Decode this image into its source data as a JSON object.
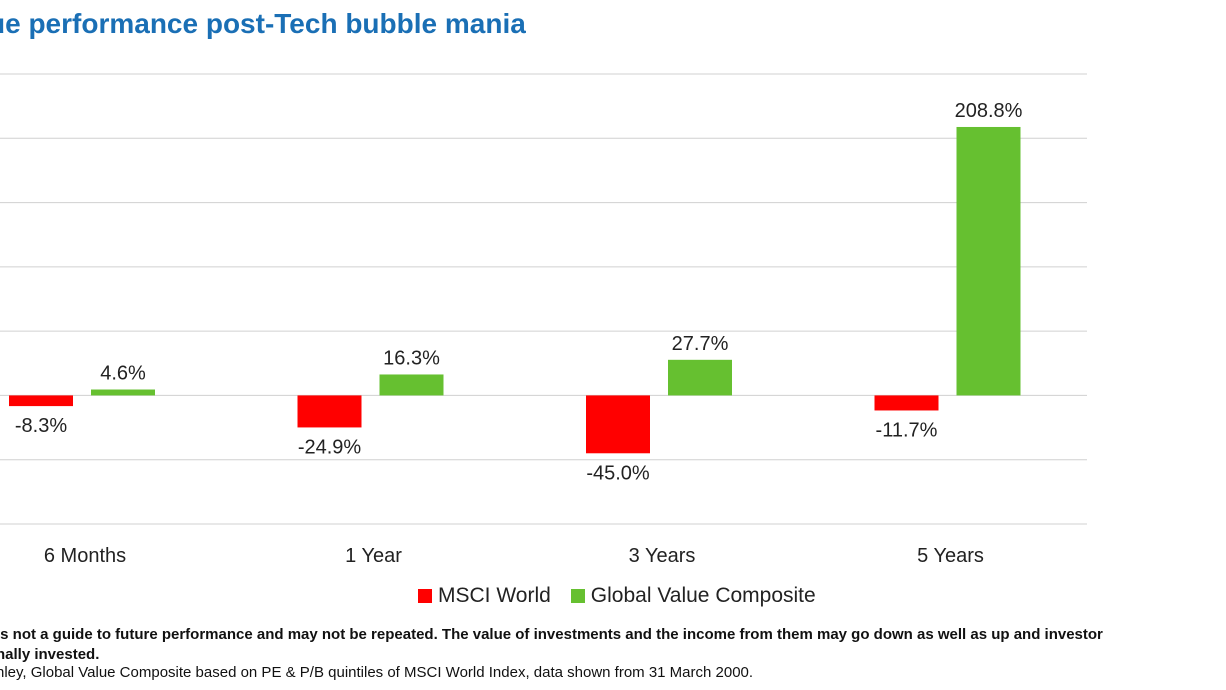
{
  "title": "ue performance post-Tech bubble mania",
  "colors": {
    "msci": "#ff0000",
    "value": "#66c030",
    "grid": "#d0d0d0",
    "title": "#1a6fb5"
  },
  "chart_data": {
    "type": "bar",
    "categories": [
      "6 Months",
      "1 Year",
      "3 Years",
      "5 Years"
    ],
    "series": [
      {
        "name": "MSCI World",
        "values": [
          -8.3,
          -24.9,
          -45.0,
          -11.7
        ],
        "labels": [
          "-8.3%",
          "-24.9%",
          "-45.0%",
          "-11.7%"
        ]
      },
      {
        "name": "Global Value Composite",
        "values": [
          4.6,
          16.3,
          27.7,
          208.8
        ],
        "labels": [
          "4.6%",
          "16.3%",
          "27.7%",
          "208.8%"
        ]
      }
    ],
    "ylim": [
      -100,
      250
    ],
    "gridlines": [
      -100,
      -50,
      0,
      50,
      100,
      150,
      200,
      250
    ],
    "grid": true,
    "legend": "bottom"
  },
  "footnotes": {
    "line1": "is not a guide to future performance and may not be repeated. The value of investments and the income from them may go down as well as up and investor",
    "line2": "nally invested.",
    "line3": "nley, Global Value Composite based on PE & P/B quintiles of MSCI World Index, data shown from 31 March 2000."
  }
}
